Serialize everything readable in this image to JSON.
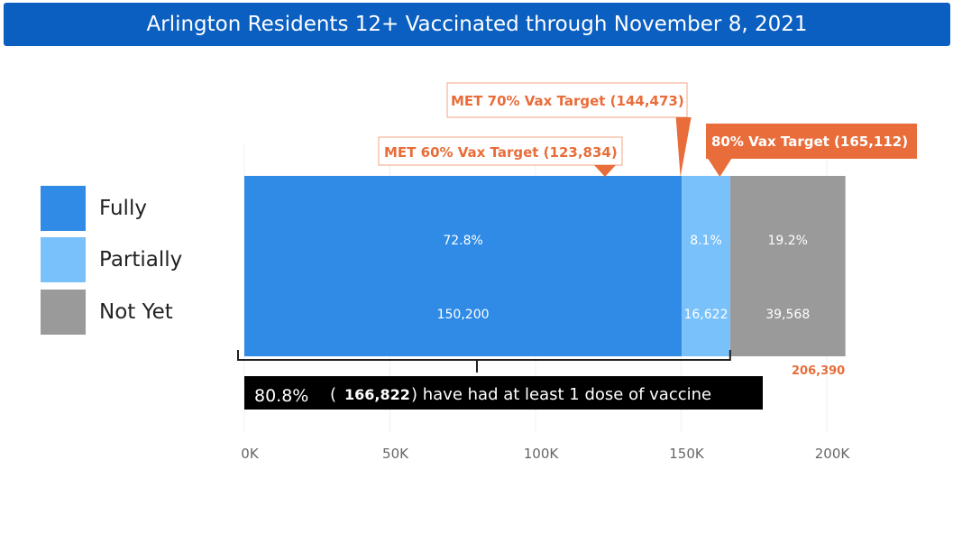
{
  "title": "Arlington Residents 12+ Vaccinated through November 8, 2021",
  "chart_data": {
    "type": "bar",
    "orientation": "horizontal",
    "stacked": true,
    "xlim": [
      0,
      206390
    ],
    "x_ticks": [
      "0K",
      "50K",
      "100K",
      "150K",
      "200K"
    ],
    "x_tick_values": [
      0,
      50000,
      100000,
      150000,
      200000
    ],
    "grid": true,
    "legend": {
      "placement": "left",
      "entries": [
        "Fully",
        "Partially",
        "Not Yet"
      ]
    },
    "colors": {
      "Fully": "#2f8be6",
      "Partially": "#79c1fb",
      "Not Yet": "#9a9a9a",
      "accent": "#e86d3a"
    },
    "series": [
      {
        "name": "Fully",
        "value": 150200,
        "percent": "72.8%",
        "count_label": "150,200"
      },
      {
        "name": "Partially",
        "value": 16622,
        "percent": "8.1%",
        "count_label": "16,622"
      },
      {
        "name": "Not Yet",
        "value": 39568,
        "percent": "19.2%",
        "count_label": "39,568"
      }
    ],
    "total_label": "206,390",
    "annotations": [
      {
        "text": "MET 60% Vax Target (123,834)",
        "value": 123834,
        "style": "outline"
      },
      {
        "text": "MET 70% Vax Target (144,473)",
        "value": 144473,
        "style": "outline"
      },
      {
        "text": "80% Vax Target (165,112)",
        "value": 165112,
        "style": "filled"
      }
    ],
    "summary": {
      "percent": "80.8%",
      "open": "(",
      "count": "166,822",
      "rest": ") have had at least 1 dose of vaccine"
    }
  }
}
